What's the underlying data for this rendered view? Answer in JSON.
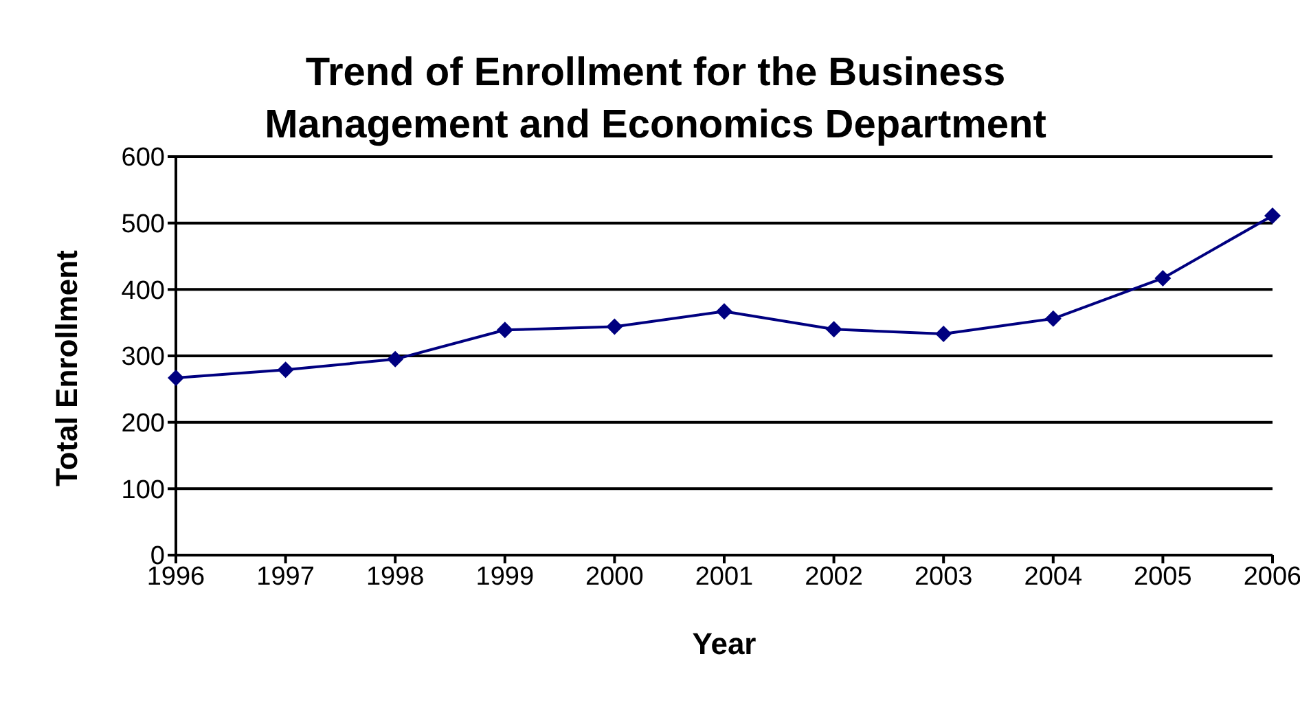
{
  "chart_data": {
    "type": "line",
    "title": "Trend of Enrollment for the Business Management and Economics Department",
    "xlabel": "Year",
    "ylabel": "Total Enrollment",
    "categories": [
      "1996",
      "1997",
      "1998",
      "1999",
      "2000",
      "2001",
      "2002",
      "2003",
      "2004",
      "2005",
      "2006"
    ],
    "series": [
      {
        "color": "#000080",
        "values": [
          267,
          279,
          295,
          339,
          344,
          367,
          340,
          333,
          356,
          417,
          511
        ]
      }
    ],
    "ylim": [
      0,
      600
    ],
    "yticks": [
      0,
      100,
      200,
      300,
      400,
      500,
      600
    ],
    "grid": "y",
    "marker": "diamond",
    "line_style": "solid",
    "legend": false
  }
}
